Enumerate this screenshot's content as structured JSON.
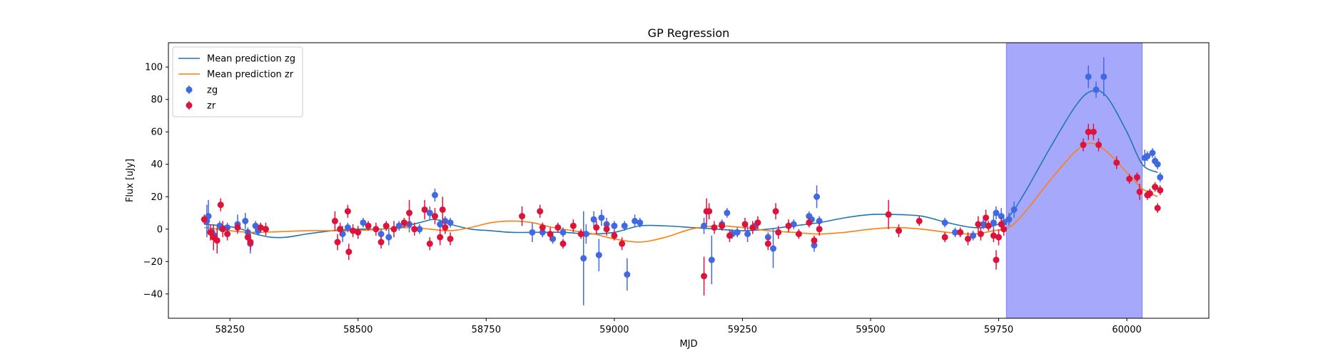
{
  "chart_data": {
    "type": "scatter",
    "title": "GP Regression",
    "xlabel": "MJD",
    "ylabel": "Flux [uJy]",
    "xlim": [
      58130,
      60160
    ],
    "ylim": [
      -55,
      115
    ],
    "xticks": [
      58250,
      58500,
      58750,
      59000,
      59250,
      59500,
      59750,
      60000
    ],
    "yticks": [
      -40,
      -20,
      0,
      20,
      40,
      60,
      80,
      100
    ],
    "grid": false,
    "legend_position": "top-left",
    "highlight_span": {
      "x0": 59765,
      "x1": 60030,
      "color": "#a6a8fb"
    },
    "legend": [
      {
        "label": "Mean prediction zg",
        "kind": "line",
        "color": "#1f77b4"
      },
      {
        "label": "Mean prediction zr",
        "kind": "line",
        "color": "#ff7f0e"
      },
      {
        "label": "zg",
        "kind": "errorpoint",
        "color": "#4169e1"
      },
      {
        "label": "zr",
        "kind": "errorpoint",
        "color": "#dc143c"
      }
    ],
    "lines": [
      {
        "name": "Mean prediction zg",
        "color": "#1f77b4",
        "x": [
          58200,
          58260,
          58300,
          58330,
          58360,
          58400,
          58450,
          58500,
          58540,
          58580,
          58620,
          58650,
          58680,
          58720,
          58760,
          58800,
          58850,
          58900,
          58950,
          59000,
          59050,
          59100,
          59150,
          59200,
          59250,
          59300,
          59350,
          59400,
          59450,
          59500,
          59550,
          59600,
          59650,
          59700,
          59740,
          59770,
          59800,
          59850,
          59900,
          59930,
          59960,
          60000,
          60030,
          60060
        ],
        "y": [
          3,
          1,
          -3,
          -5,
          -5,
          -3,
          -1,
          0,
          0,
          1,
          4,
          6,
          3,
          0,
          -1,
          -2,
          -2,
          -2,
          -3,
          -2,
          2,
          2,
          1,
          0,
          -1,
          0,
          2,
          4,
          7,
          9,
          9,
          8,
          4,
          1,
          2,
          8,
          22,
          50,
          76,
          85,
          82,
          60,
          40,
          35
        ]
      },
      {
        "name": "Mean prediction zr",
        "color": "#ff7f0e",
        "x": [
          58200,
          58250,
          58300,
          58400,
          58480,
          58550,
          58600,
          58640,
          58680,
          58720,
          58760,
          58800,
          58840,
          58880,
          58920,
          58960,
          59000,
          59050,
          59100,
          59150,
          59200,
          59250,
          59300,
          59350,
          59400,
          59450,
          59500,
          59550,
          59600,
          59650,
          59700,
          59740,
          59770,
          59800,
          59850,
          59900,
          59930,
          59960,
          60000,
          60030,
          60060
        ],
        "y": [
          1,
          -1,
          -2,
          -1,
          -1,
          0,
          1,
          0,
          -1,
          1,
          4,
          5,
          4,
          1,
          -1,
          -3,
          -6,
          -8,
          -5,
          0,
          2,
          1,
          -1,
          -2,
          -3,
          -2,
          0,
          1,
          0,
          -2,
          -3,
          -1,
          1,
          10,
          30,
          48,
          53,
          48,
          35,
          25,
          20
        ]
      }
    ],
    "series": [
      {
        "name": "zg",
        "color": "#4169e1",
        "points": [
          [
            58205,
            5,
            10
          ],
          [
            58208,
            8,
            10
          ],
          [
            58215,
            -2,
            3
          ],
          [
            58220,
            -4,
            3
          ],
          [
            58230,
            2,
            3
          ],
          [
            58245,
            1,
            3
          ],
          [
            58265,
            3,
            6
          ],
          [
            58280,
            5,
            5
          ],
          [
            58285,
            -2,
            3
          ],
          [
            58290,
            -9,
            6
          ],
          [
            58300,
            2,
            3
          ],
          [
            58305,
            -1,
            3
          ],
          [
            58470,
            -3,
            5
          ],
          [
            58480,
            1,
            3
          ],
          [
            58510,
            4,
            3
          ],
          [
            58545,
            -3,
            3
          ],
          [
            58560,
            -5,
            5
          ],
          [
            58580,
            2,
            3
          ],
          [
            58600,
            3,
            5
          ],
          [
            58620,
            0,
            3
          ],
          [
            58640,
            10,
            4
          ],
          [
            58650,
            21,
            4
          ],
          [
            58660,
            3,
            3
          ],
          [
            58670,
            5,
            3
          ],
          [
            58680,
            4,
            3
          ],
          [
            58840,
            -2,
            6
          ],
          [
            58860,
            -2,
            3
          ],
          [
            58880,
            -6,
            3
          ],
          [
            58900,
            -2,
            3
          ],
          [
            58940,
            -18,
            29
          ],
          [
            58945,
            -3,
            6
          ],
          [
            58960,
            6,
            5
          ],
          [
            58970,
            -16,
            10
          ],
          [
            58975,
            7,
            5
          ],
          [
            58985,
            3,
            4
          ],
          [
            59000,
            2,
            3
          ],
          [
            59020,
            2,
            3
          ],
          [
            59025,
            -28,
            10
          ],
          [
            59040,
            5,
            4
          ],
          [
            59050,
            4,
            3
          ],
          [
            59175,
            2,
            5
          ],
          [
            59190,
            -19,
            15
          ],
          [
            59210,
            3,
            3
          ],
          [
            59220,
            10,
            3
          ],
          [
            59230,
            -3,
            3
          ],
          [
            59240,
            -2,
            3
          ],
          [
            59260,
            -3,
            5
          ],
          [
            59275,
            2,
            3
          ],
          [
            59300,
            -5,
            3
          ],
          [
            59310,
            -12,
            12
          ],
          [
            59340,
            2,
            3
          ],
          [
            59350,
            3,
            3
          ],
          [
            59380,
            8,
            3
          ],
          [
            59385,
            6,
            3
          ],
          [
            59390,
            -10,
            4
          ],
          [
            59395,
            20,
            7
          ],
          [
            59400,
            5,
            3
          ],
          [
            59645,
            4,
            3
          ],
          [
            59665,
            -2,
            3
          ],
          [
            59700,
            -4,
            3
          ],
          [
            59720,
            3,
            3
          ],
          [
            59730,
            2,
            3
          ],
          [
            59740,
            4,
            5
          ],
          [
            59745,
            10,
            4
          ],
          [
            59755,
            8,
            5
          ],
          [
            59760,
            4,
            4
          ],
          [
            59770,
            6,
            4
          ],
          [
            59780,
            12,
            5
          ],
          [
            59925,
            94,
            7
          ],
          [
            59940,
            86,
            5
          ],
          [
            59955,
            94,
            12
          ],
          [
            60035,
            44,
            5
          ],
          [
            60040,
            45,
            3
          ],
          [
            60050,
            47,
            3
          ],
          [
            60055,
            42,
            3
          ],
          [
            60060,
            40,
            3
          ],
          [
            60065,
            32,
            3
          ]
        ]
      },
      {
        "name": "zr",
        "color": "#dc143c",
        "points": [
          [
            58200,
            6,
            3
          ],
          [
            58212,
            -2,
            5
          ],
          [
            58218,
            -5,
            8
          ],
          [
            58225,
            -7,
            8
          ],
          [
            58232,
            15,
            4
          ],
          [
            58236,
            0,
            5
          ],
          [
            58245,
            -3,
            4
          ],
          [
            58265,
            1,
            3
          ],
          [
            58285,
            -5,
            5
          ],
          [
            58290,
            -8,
            5
          ],
          [
            58310,
            1,
            3
          ],
          [
            58320,
            0,
            4
          ],
          [
            58455,
            5,
            6
          ],
          [
            58460,
            -8,
            5
          ],
          [
            58465,
            0,
            4
          ],
          [
            58480,
            11,
            4
          ],
          [
            58482,
            -14,
            5
          ],
          [
            58490,
            -1,
            4
          ],
          [
            58500,
            -2,
            4
          ],
          [
            58520,
            2,
            3
          ],
          [
            58535,
            0,
            4
          ],
          [
            58545,
            -8,
            4
          ],
          [
            58555,
            2,
            3
          ],
          [
            58570,
            0,
            5
          ],
          [
            58590,
            4,
            3
          ],
          [
            58600,
            10,
            8
          ],
          [
            58610,
            0,
            4
          ],
          [
            58630,
            12,
            6
          ],
          [
            58640,
            -9,
            4
          ],
          [
            58650,
            8,
            5
          ],
          [
            58660,
            -5,
            5
          ],
          [
            58665,
            12,
            8
          ],
          [
            58670,
            1,
            4
          ],
          [
            58680,
            -6,
            4
          ],
          [
            58820,
            8,
            6
          ],
          [
            58855,
            11,
            4
          ],
          [
            58860,
            1,
            3
          ],
          [
            58875,
            -3,
            4
          ],
          [
            58890,
            1,
            3
          ],
          [
            58900,
            -9,
            3
          ],
          [
            58920,
            2,
            4
          ],
          [
            58935,
            -3,
            3
          ],
          [
            58965,
            1,
            4
          ],
          [
            58985,
            0,
            4
          ],
          [
            59000,
            -4,
            3
          ],
          [
            59015,
            -9,
            4
          ],
          [
            59175,
            -29,
            12
          ],
          [
            59180,
            11,
            8
          ],
          [
            59185,
            11,
            5
          ],
          [
            59195,
            1,
            4
          ],
          [
            59210,
            2,
            3
          ],
          [
            59225,
            -4,
            4
          ],
          [
            59255,
            3,
            4
          ],
          [
            59270,
            1,
            4
          ],
          [
            59280,
            4,
            4
          ],
          [
            59300,
            -9,
            4
          ],
          [
            59315,
            11,
            5
          ],
          [
            59320,
            -2,
            4
          ],
          [
            59340,
            2,
            4
          ],
          [
            59360,
            -3,
            3
          ],
          [
            59380,
            4,
            3
          ],
          [
            59390,
            -7,
            3
          ],
          [
            59400,
            0,
            4
          ],
          [
            59535,
            9,
            9
          ],
          [
            59555,
            -1,
            4
          ],
          [
            59595,
            5,
            3
          ],
          [
            59645,
            -5,
            3
          ],
          [
            59675,
            -2,
            3
          ],
          [
            59690,
            -6,
            4
          ],
          [
            59710,
            3,
            5
          ],
          [
            59715,
            -3,
            4
          ],
          [
            59725,
            7,
            5
          ],
          [
            59730,
            2,
            3
          ],
          [
            59740,
            -4,
            4
          ],
          [
            59745,
            -19,
            6
          ],
          [
            59750,
            -5,
            5
          ],
          [
            59755,
            3,
            4
          ],
          [
            59760,
            0,
            4
          ],
          [
            59915,
            52,
            4
          ],
          [
            59925,
            60,
            5
          ],
          [
            59935,
            60,
            5
          ],
          [
            59945,
            52,
            4
          ],
          [
            59980,
            41,
            4
          ],
          [
            60005,
            31,
            3
          ],
          [
            60020,
            32,
            3
          ],
          [
            60025,
            23,
            5
          ],
          [
            60040,
            21,
            3
          ],
          [
            60045,
            22,
            3
          ],
          [
            60055,
            26,
            3
          ],
          [
            60060,
            13,
            3
          ],
          [
            60065,
            24,
            3
          ]
        ]
      }
    ]
  }
}
